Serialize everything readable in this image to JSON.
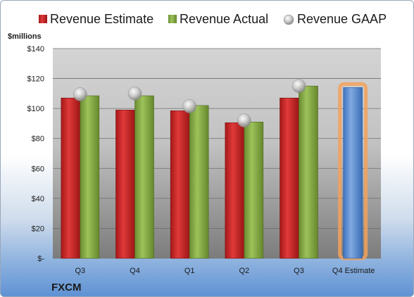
{
  "company": "FXCM",
  "colors": {
    "estimate": "#cc2222",
    "actual": "#7fa040",
    "gaap": "#bfbfbf",
    "future_estimate": "#5b8ed0",
    "highlight": "#f4a15a"
  },
  "chart_data": {
    "type": "bar",
    "ylabel": "$millions",
    "ylim": [
      0,
      140
    ],
    "yticks": [
      "$-",
      "$20",
      "$40",
      "$60",
      "$80",
      "$100",
      "$120",
      "$140"
    ],
    "ytick_values": [
      0,
      20,
      40,
      60,
      80,
      100,
      120,
      140
    ],
    "grid": true,
    "legend_position": "top",
    "categories": [
      "Q3",
      "Q4",
      "Q1",
      "Q2",
      "Q3",
      "Q4 Estimate"
    ],
    "series": [
      {
        "name": "Revenue Estimate",
        "values": [
          107,
          99,
          98.5,
          90.5,
          107,
          114
        ]
      },
      {
        "name": "Revenue Actual",
        "values": [
          108.5,
          108.5,
          102,
          91,
          115,
          null
        ]
      },
      {
        "name": "Revenue GAAP",
        "values": [
          109.5,
          110,
          101.5,
          92,
          115,
          null
        ]
      }
    ]
  }
}
